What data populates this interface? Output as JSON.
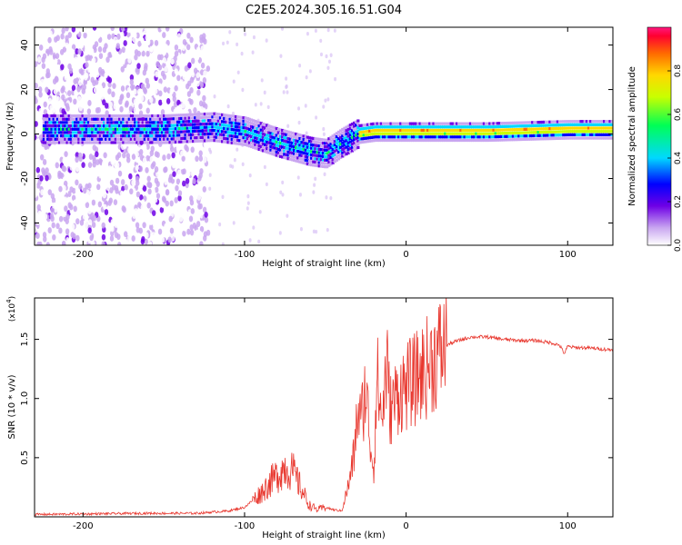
{
  "page": {
    "title": "C2E5.2024.305.16.51.G04"
  },
  "chart_data": [
    {
      "type": "heatmap",
      "title": "C2E5.2024.305.16.51.G04",
      "xlabel": "Height of straight line (km)",
      "ylabel": "Frequency (Hz)",
      "xlim": [
        -230,
        128
      ],
      "ylim": [
        -50,
        48
      ],
      "xticks": [
        -200,
        -100,
        0,
        100
      ],
      "xtick_labels": [
        "-200",
        "-100",
        "0",
        "100"
      ],
      "yticks": [
        -40,
        -20,
        0,
        20,
        40
      ],
      "ytick_labels": [
        "-40",
        "-20",
        "0",
        "20",
        "40"
      ],
      "colorbar": {
        "label": "Normalized spectral amplitude",
        "range": [
          0,
          1
        ],
        "ticks": [
          0,
          0.2,
          0.4,
          0.6,
          0.8
        ],
        "tick_labels": [
          "0.0",
          "0.2",
          "0.4",
          "0.6",
          "0.8"
        ]
      },
      "ridge": {
        "description_points_x": [
          -200,
          -150,
          -120,
          -100,
          -80,
          -60,
          -50,
          -40,
          -30,
          -20,
          0,
          50,
          100,
          128
        ],
        "description_points_y": [
          2,
          2,
          3,
          1,
          -4,
          -8,
          -9,
          -4,
          0,
          1,
          1,
          1,
          2,
          2
        ]
      }
    },
    {
      "type": "line",
      "xlabel": "Height of straight line (km)",
      "ylabel": "SNR (10 * v/v)",
      "multiplier": "(x10",
      "multiplier_exp": "4",
      "multiplier_close": ")",
      "xlim": [
        -230,
        128
      ],
      "ylim": [
        0,
        1.85
      ],
      "xticks": [
        -200,
        -100,
        0,
        100
      ],
      "xtick_labels": [
        "-200",
        "-100",
        "0",
        "100"
      ],
      "yticks": [
        0.5,
        1.0,
        1.5
      ],
      "ytick_labels": [
        "0.5",
        "1.0",
        "1.5"
      ],
      "series": [
        {
          "name": "SNR",
          "color": "#e8372e",
          "x": [
            -230,
            -160,
            -130,
            -110,
            -100,
            -95,
            -90,
            -85,
            -80,
            -75,
            -70,
            -65,
            -60,
            -55,
            -50,
            -45,
            -40,
            -35,
            -32,
            -30,
            -28,
            -25,
            -22,
            -20,
            -18,
            -15,
            -12,
            -10,
            -5,
            0,
            5,
            10,
            15,
            20,
            25,
            30,
            40,
            50,
            60,
            70,
            80,
            90,
            95,
            98,
            100,
            105,
            110,
            120,
            128
          ],
          "y": [
            0.02,
            0.03,
            0.03,
            0.05,
            0.08,
            0.14,
            0.2,
            0.28,
            0.35,
            0.42,
            0.38,
            0.24,
            0.1,
            0.06,
            0.08,
            0.06,
            0.05,
            0.3,
            0.55,
            0.9,
            0.8,
            1.1,
            0.6,
            0.4,
            1.2,
            0.8,
            1.3,
            0.9,
            1.05,
            1.1,
            1.15,
            1.22,
            1.3,
            1.38,
            1.45,
            1.48,
            1.52,
            1.52,
            1.5,
            1.49,
            1.49,
            1.47,
            1.45,
            1.38,
            1.44,
            1.43,
            1.43,
            1.42,
            1.41
          ]
        }
      ]
    }
  ]
}
